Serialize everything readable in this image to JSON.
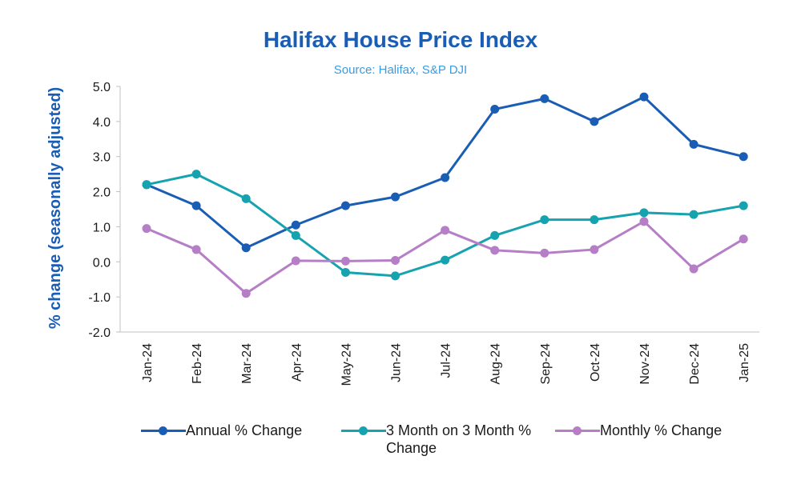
{
  "chart_data": {
    "type": "line",
    "title": "Halifax House Price Index",
    "subtitle": "Source: Halifax,  S&P DJI",
    "ylabel": "% change (seasonally adjusted)",
    "xlabel": "",
    "ylim": [
      -2.0,
      5.0
    ],
    "yticks": [
      "5.0",
      "4.0",
      "3.0",
      "2.0",
      "1.0",
      "0.0",
      "-1.0",
      "-2.0"
    ],
    "ytick_values": [
      5,
      4,
      3,
      2,
      1,
      0,
      -1,
      -2
    ],
    "categories": [
      "Jan-24",
      "Feb-24",
      "Mar-24",
      "Apr-24",
      "May-24",
      "Jun-24",
      "Jul-24",
      "Aug-24",
      "Sep-24",
      "Oct-24",
      "Nov-24",
      "Dec-24",
      "Jan-25"
    ],
    "grid": false,
    "legend_position": "bottom",
    "series": [
      {
        "name": "Annual % Change",
        "color": "#1a5db5",
        "values": [
          2.2,
          1.6,
          0.4,
          1.05,
          1.6,
          1.85,
          2.4,
          4.35,
          4.65,
          4.0,
          4.7,
          3.35,
          3.0
        ]
      },
      {
        "name": "3 Month on 3 Month % Change",
        "color": "#17a2b0",
        "values": [
          2.2,
          2.5,
          1.8,
          0.75,
          -0.3,
          -0.4,
          0.05,
          0.75,
          1.2,
          1.2,
          1.4,
          1.35,
          1.6
        ]
      },
      {
        "name": "Monthly % Change",
        "color": "#b57ec6",
        "values": [
          0.95,
          0.35,
          -0.9,
          0.03,
          0.02,
          0.04,
          0.9,
          0.33,
          0.25,
          0.35,
          1.15,
          -0.2,
          0.65
        ]
      }
    ],
    "colors": {
      "title": "#1a5db5",
      "subtitle": "#3a9be0",
      "axis": "#c0c0c0",
      "ylabel": "#1a5db5"
    }
  }
}
